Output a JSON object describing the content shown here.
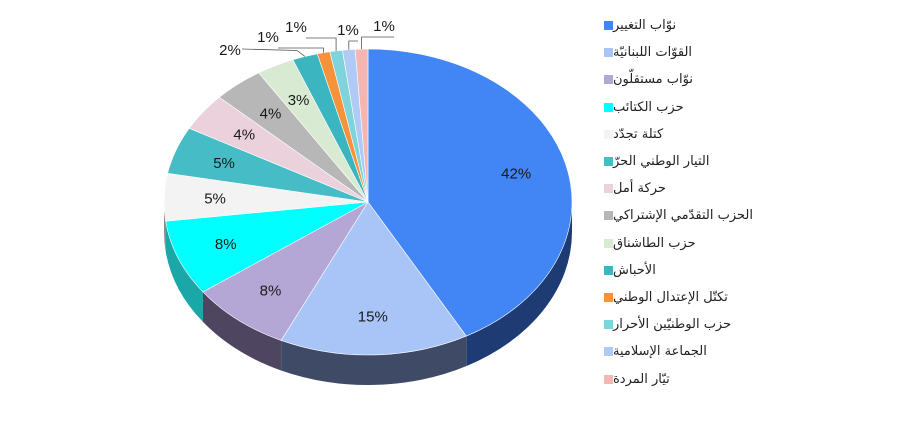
{
  "chart_data": {
    "type": "pie",
    "style": "3d",
    "legend_position": "right",
    "unit": "%",
    "slices": [
      {
        "label": "نوّاب التغيير",
        "value": 42,
        "color": "#4285F4",
        "side": "#1E3C73"
      },
      {
        "label": "القوّات اللبنانيّة",
        "value": 15,
        "color": "#A9C5F7",
        "side": "#3F4A66"
      },
      {
        "label": "نوّاب مستقلّون",
        "value": 8,
        "color": "#B4A7D6",
        "side": "#4E4560"
      },
      {
        "label": "حزب الكتائب",
        "value": 8,
        "color": "#00FFFF",
        "side": "#19A7A7"
      },
      {
        "label": "كتلة تجدّد",
        "value": 5,
        "color": "#F3F3F3",
        "side": "#8A8A8A"
      },
      {
        "label": "التيار الوطني الحرّ",
        "value": 5,
        "color": "#46BDC6",
        "side": "#1F6B72"
      },
      {
        "label": "حركة أمل",
        "value": 4,
        "color": "#EAD1DC",
        "side": "#8E7680"
      },
      {
        "label": "الحزب التقدّمي الإشتراكي",
        "value": 4,
        "color": "#B7B7B7",
        "side": "#666666"
      },
      {
        "label": "حزب الطاشناق",
        "value": 3,
        "color": "#D9EAD3",
        "side": "#7D8B77"
      },
      {
        "label": "الأحباش",
        "value": 2,
        "color": "#3BB5C0",
        "side": "#1E6E75"
      },
      {
        "label": "تكتّل الإعتدال الوطني",
        "value": 1,
        "color": "#F6923A",
        "side": "#9A5A20"
      },
      {
        "label": "حزب الوطنيّين الأحرار",
        "value": 1,
        "color": "#7FD3DB",
        "side": "#3E7F86"
      },
      {
        "label": "الجماعة الإسلامية",
        "value": 1,
        "color": "#AFCBF5",
        "side": "#5E7295"
      },
      {
        "label": "تيّار المردة",
        "value": 1,
        "color": "#F4B6B3",
        "side": "#9A6B69"
      }
    ]
  }
}
